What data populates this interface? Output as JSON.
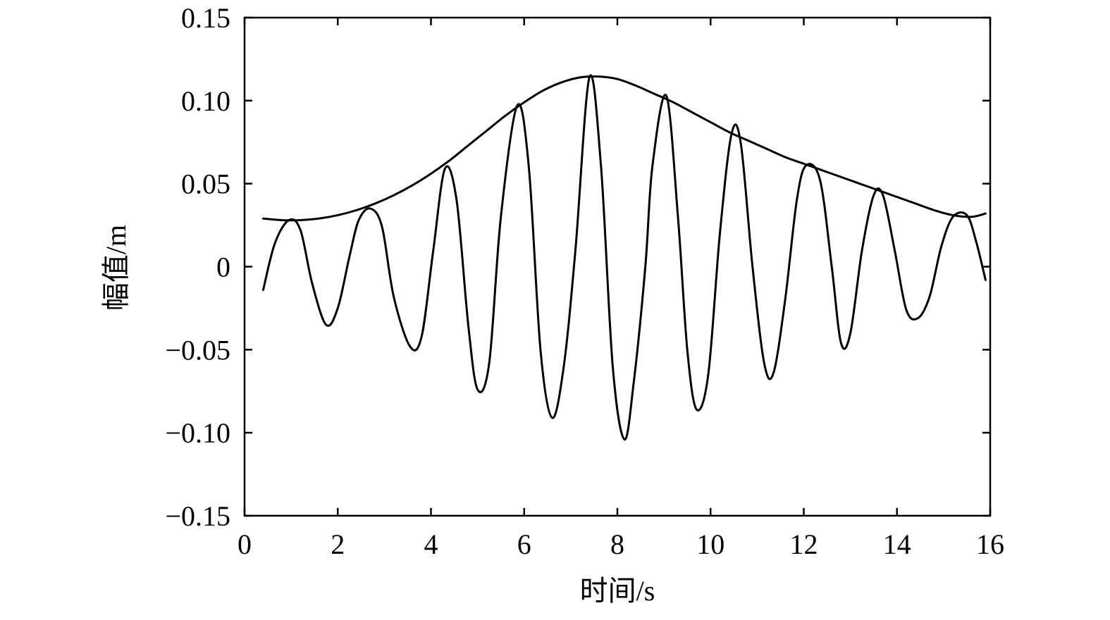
{
  "chart_data": {
    "type": "line",
    "xlabel": "时间/s",
    "ylabel": "幅值/m",
    "xlim": [
      0,
      16
    ],
    "ylim": [
      -0.15,
      0.15
    ],
    "x_ticks": [
      0,
      2,
      4,
      6,
      8,
      10,
      12,
      14,
      16
    ],
    "x_tick_labels": [
      "0",
      "2",
      "4",
      "6",
      "8",
      "10",
      "12",
      "14",
      "16"
    ],
    "y_ticks": [
      0.15,
      0.1,
      0.05,
      0,
      -0.05,
      -0.1,
      -0.15
    ],
    "y_tick_labels": [
      "0.15",
      "0.10",
      "0.05",
      "0",
      "−0.05",
      "−0.10",
      "−0.15"
    ],
    "grid": false,
    "legend": "none",
    "series": [
      {
        "key": "wave",
        "x": [
          0.4,
          0.65,
          0.95,
          1.2,
          1.45,
          1.75,
          2.0,
          2.25,
          2.45,
          2.7,
          2.95,
          3.2,
          3.55,
          3.8,
          4.05,
          4.3,
          4.55,
          4.8,
          5.0,
          5.25,
          5.5,
          5.85,
          6.1,
          6.35,
          6.6,
          6.85,
          7.1,
          7.4,
          7.65,
          7.9,
          8.15,
          8.35,
          8.6,
          8.75,
          9.05,
          9.3,
          9.5,
          9.7,
          9.95,
          10.2,
          10.45,
          10.65,
          10.9,
          11.15,
          11.35,
          11.6,
          11.85,
          12.05,
          12.35,
          12.6,
          12.8,
          13.0,
          13.25,
          13.5,
          13.7,
          13.95,
          14.2,
          14.45,
          14.7,
          14.95,
          15.2,
          15.5,
          15.7,
          15.9
        ],
        "y": [
          -0.014,
          0.014,
          0.028,
          0.022,
          -0.01,
          -0.035,
          -0.025,
          0.006,
          0.028,
          0.035,
          0.024,
          -0.018,
          -0.048,
          -0.042,
          0.01,
          0.059,
          0.04,
          -0.035,
          -0.074,
          -0.058,
          0.03,
          0.097,
          0.06,
          -0.05,
          -0.091,
          -0.06,
          0.01,
          0.114,
          0.06,
          -0.06,
          -0.104,
          -0.07,
          0.0,
          0.06,
          0.103,
          0.03,
          -0.05,
          -0.086,
          -0.065,
          0.02,
          0.08,
          0.074,
          0.0,
          -0.058,
          -0.064,
          -0.02,
          0.04,
          0.061,
          0.052,
          0.0,
          -0.046,
          -0.04,
          0.01,
          0.043,
          0.043,
          0.01,
          -0.026,
          -0.031,
          -0.018,
          0.012,
          0.03,
          0.031,
          0.015,
          -0.008
        ]
      },
      {
        "key": "envelope",
        "x": [
          0.4,
          0.8,
          1.2,
          1.6,
          2.0,
          2.4,
          2.8,
          3.2,
          3.6,
          4.0,
          4.4,
          4.8,
          5.2,
          5.6,
          6.0,
          6.4,
          6.8,
          7.2,
          7.6,
          8.0,
          8.4,
          8.8,
          9.2,
          9.6,
          10.0,
          10.4,
          10.8,
          11.2,
          11.6,
          12.0,
          12.4,
          12.8,
          13.2,
          13.6,
          14.0,
          14.4,
          14.8,
          15.2,
          15.6,
          15.9
        ],
        "y": [
          0.029,
          0.028,
          0.028,
          0.029,
          0.031,
          0.034,
          0.038,
          0.043,
          0.049,
          0.056,
          0.064,
          0.073,
          0.082,
          0.091,
          0.099,
          0.106,
          0.111,
          0.114,
          0.1145,
          0.113,
          0.109,
          0.104,
          0.099,
          0.093,
          0.087,
          0.081,
          0.076,
          0.071,
          0.066,
          0.062,
          0.058,
          0.054,
          0.05,
          0.046,
          0.042,
          0.038,
          0.034,
          0.031,
          0.03,
          0.032
        ]
      }
    ]
  }
}
